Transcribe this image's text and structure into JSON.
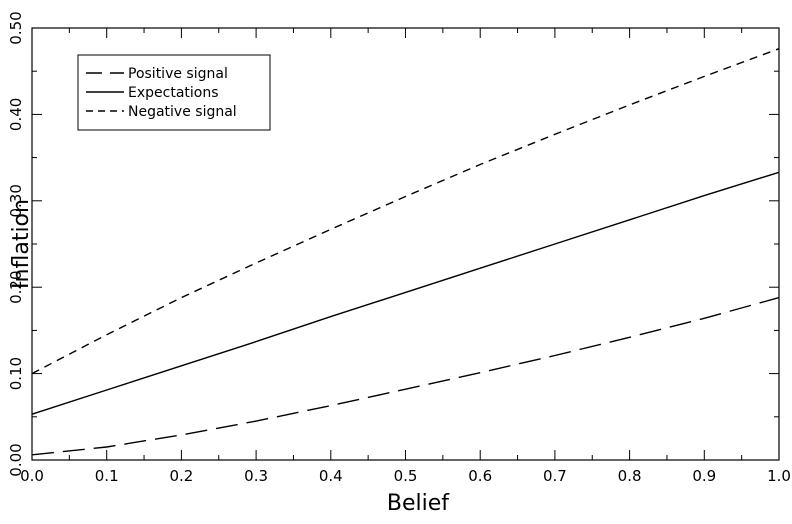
{
  "chart_data": {
    "type": "line",
    "title": "",
    "xlabel": "Belief",
    "ylabel": "Inflation",
    "xlim": [
      0.0,
      1.0
    ],
    "ylim": [
      0.0,
      0.5
    ],
    "x_ticks": [
      "0.0",
      "0.1",
      "0.2",
      "0.3",
      "0.4",
      "0.5",
      "0.6",
      "0.7",
      "0.8",
      "0.9",
      "1.0"
    ],
    "y_ticks": [
      "0.00",
      "0.10",
      "0.20",
      "0.30",
      "0.40",
      "0.50"
    ],
    "grid": false,
    "legend_position": "top-left",
    "series": [
      {
        "name": "Positive signal",
        "line_style": "long-dash",
        "color": "#000000",
        "x": [
          0.0,
          0.1,
          0.2,
          0.3,
          0.4,
          0.5,
          0.6,
          0.7,
          0.8,
          0.9,
          1.0
        ],
        "y": [
          0.006,
          0.015,
          0.029,
          0.045,
          0.063,
          0.082,
          0.101,
          0.121,
          0.142,
          0.164,
          0.188
        ]
      },
      {
        "name": "Expectations",
        "line_style": "solid",
        "color": "#000000",
        "x": [
          0.0,
          0.1,
          0.2,
          0.3,
          0.4,
          0.5,
          0.6,
          0.7,
          0.8,
          0.9,
          1.0
        ],
        "y": [
          0.053,
          0.081,
          0.109,
          0.137,
          0.166,
          0.194,
          0.222,
          0.25,
          0.278,
          0.306,
          0.333
        ]
      },
      {
        "name": "Negative signal",
        "line_style": "short-dash",
        "color": "#000000",
        "x": [
          0.0,
          0.1,
          0.2,
          0.3,
          0.4,
          0.5,
          0.6,
          0.7,
          0.8,
          0.9,
          1.0
        ],
        "y": [
          0.1,
          0.145,
          0.188,
          0.228,
          0.267,
          0.305,
          0.342,
          0.377,
          0.411,
          0.444,
          0.476
        ]
      }
    ]
  }
}
